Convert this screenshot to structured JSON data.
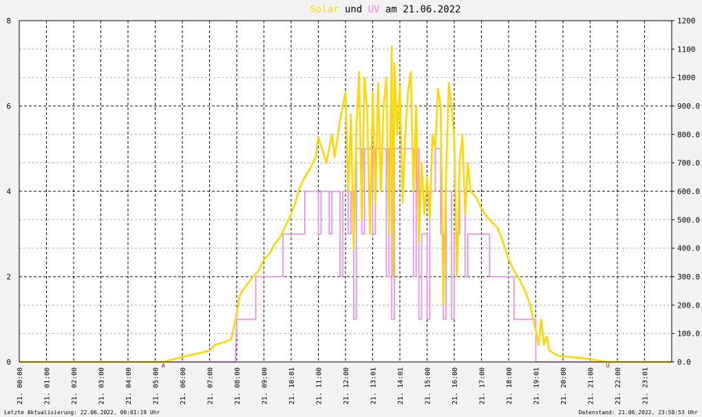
{
  "title": {
    "part1": "Solar",
    "part2": " und ",
    "part3": "UV",
    "part4": " am 21.06.2022"
  },
  "footer": {
    "left": "Letzte Aktualisierung: 22.06.2022, 00:01:19 Uhr",
    "right": "Datenstand: 21.06.2022, 23:58:53 Uhr"
  },
  "colors": {
    "solar": "#ffd700",
    "uv": "#ee82ee",
    "grid": "#000000",
    "background": "#ffffff"
  },
  "chart_data": {
    "type": "line",
    "title": "Solar und UV am 21.06.2022",
    "x_range_hours": [
      0,
      24
    ],
    "y_left": {
      "range": [
        0,
        8
      ],
      "ticks": [
        "0",
        "2",
        "4",
        "6",
        "8"
      ],
      "series": "UV"
    },
    "y_right": {
      "range": [
        0,
        1200
      ],
      "ticks": [
        "0.0",
        "100.0",
        "200.0",
        "300.0",
        "400.0",
        "500.0",
        "600.0",
        "700.0",
        "800.0",
        "900.0",
        "1000",
        "1100",
        "1200"
      ],
      "series": "Solar"
    },
    "x_tick_labels": [
      "21. 00:00",
      "21. 01:00",
      "21. 02:00",
      "21. 03:00",
      "21. 04:00",
      "21. 05:00",
      "21. 06:00",
      "21. 07:00",
      "21. 08:00",
      "21. 09:00",
      "21. 10:01",
      "21. 11:00",
      "21. 12:00",
      "21. 13:01",
      "21. 14:01",
      "21. 15:00",
      "21. 16:00",
      "21. 17:00",
      "21. 18:00",
      "21. 19:01",
      "21. 20:00",
      "21. 21:00",
      "21. 22:00",
      "21. 23:01"
    ],
    "markers": [
      {
        "label": "A",
        "hour": 5.3
      },
      {
        "label": "U",
        "hour": 21.65
      }
    ],
    "series": [
      {
        "name": "Solar",
        "axis": "right",
        "points": [
          [
            0,
            0
          ],
          [
            5.3,
            0
          ],
          [
            5.5,
            5
          ],
          [
            6.0,
            18
          ],
          [
            6.5,
            28
          ],
          [
            7.0,
            40
          ],
          [
            7.2,
            60
          ],
          [
            7.5,
            68
          ],
          [
            7.8,
            80
          ],
          [
            8.0,
            170
          ],
          [
            8.1,
            230
          ],
          [
            8.2,
            250
          ],
          [
            8.4,
            275
          ],
          [
            8.6,
            300
          ],
          [
            8.8,
            320
          ],
          [
            9.0,
            360
          ],
          [
            9.2,
            380
          ],
          [
            9.4,
            415
          ],
          [
            9.6,
            440
          ],
          [
            9.8,
            480
          ],
          [
            10.0,
            520
          ],
          [
            10.15,
            560
          ],
          [
            10.3,
            610
          ],
          [
            10.5,
            650
          ],
          [
            10.7,
            680
          ],
          [
            10.9,
            720
          ],
          [
            11.0,
            790
          ],
          [
            11.1,
            760
          ],
          [
            11.3,
            700
          ],
          [
            11.5,
            800
          ],
          [
            11.6,
            720
          ],
          [
            11.8,
            850
          ],
          [
            12.0,
            950
          ],
          [
            12.1,
            600
          ],
          [
            12.2,
            870
          ],
          [
            12.3,
            400
          ],
          [
            12.4,
            820
          ],
          [
            12.5,
            1020
          ],
          [
            12.6,
            500
          ],
          [
            12.7,
            1000
          ],
          [
            12.8,
            880
          ],
          [
            12.9,
            450
          ],
          [
            13.0,
            950
          ],
          [
            13.1,
            560
          ],
          [
            13.2,
            980
          ],
          [
            13.3,
            600
          ],
          [
            13.4,
            900
          ],
          [
            13.5,
            1000
          ],
          [
            13.6,
            450
          ],
          [
            13.7,
            1110
          ],
          [
            13.75,
            300
          ],
          [
            13.8,
            1050
          ],
          [
            13.9,
            800
          ],
          [
            14.0,
            970
          ],
          [
            14.1,
            560
          ],
          [
            14.2,
            800
          ],
          [
            14.3,
            950
          ],
          [
            14.4,
            1020
          ],
          [
            14.5,
            600
          ],
          [
            14.6,
            900
          ],
          [
            14.7,
            420
          ],
          [
            14.8,
            700
          ],
          [
            14.9,
            520
          ],
          [
            15.0,
            650
          ],
          [
            15.1,
            500
          ],
          [
            15.2,
            800
          ],
          [
            15.3,
            750
          ],
          [
            15.4,
            960
          ],
          [
            15.5,
            900
          ],
          [
            15.6,
            200
          ],
          [
            15.7,
            650
          ],
          [
            15.8,
            980
          ],
          [
            15.9,
            900
          ],
          [
            16.0,
            780
          ],
          [
            16.1,
            300
          ],
          [
            16.2,
            700
          ],
          [
            16.3,
            800
          ],
          [
            16.4,
            520
          ],
          [
            16.5,
            700
          ],
          [
            16.6,
            600
          ],
          [
            16.8,
            580
          ],
          [
            17.0,
            540
          ],
          [
            17.2,
            510
          ],
          [
            17.4,
            490
          ],
          [
            17.6,
            470
          ],
          [
            17.8,
            420
          ],
          [
            18.0,
            360
          ],
          [
            18.2,
            320
          ],
          [
            18.4,
            290
          ],
          [
            18.6,
            250
          ],
          [
            18.8,
            200
          ],
          [
            19.0,
            110
          ],
          [
            19.1,
            60
          ],
          [
            19.2,
            150
          ],
          [
            19.3,
            60
          ],
          [
            19.4,
            90
          ],
          [
            19.5,
            40
          ],
          [
            19.8,
            22
          ],
          [
            20.2,
            18
          ],
          [
            20.6,
            15
          ],
          [
            21.0,
            10
          ],
          [
            21.3,
            5
          ],
          [
            21.65,
            0
          ],
          [
            24,
            0
          ]
        ]
      },
      {
        "name": "UV",
        "axis": "left",
        "points": [
          [
            0,
            0
          ],
          [
            7.95,
            0
          ],
          [
            8.0,
            1
          ],
          [
            8.7,
            1
          ],
          [
            8.7,
            2
          ],
          [
            9.7,
            2
          ],
          [
            9.7,
            3
          ],
          [
            10.0,
            3
          ],
          [
            10.0,
            3
          ],
          [
            10.5,
            3
          ],
          [
            10.5,
            4
          ],
          [
            11.0,
            4
          ],
          [
            11.0,
            3
          ],
          [
            11.1,
            3
          ],
          [
            11.1,
            4
          ],
          [
            11.4,
            4
          ],
          [
            11.4,
            3
          ],
          [
            11.5,
            3
          ],
          [
            11.5,
            4
          ],
          [
            11.8,
            4
          ],
          [
            11.8,
            2
          ],
          [
            11.9,
            2
          ],
          [
            11.9,
            4
          ],
          [
            12.1,
            4
          ],
          [
            12.1,
            3
          ],
          [
            12.2,
            3
          ],
          [
            12.2,
            4
          ],
          [
            12.3,
            4
          ],
          [
            12.3,
            1
          ],
          [
            12.4,
            1
          ],
          [
            12.4,
            5
          ],
          [
            12.6,
            5
          ],
          [
            12.6,
            3
          ],
          [
            12.7,
            3
          ],
          [
            12.7,
            5
          ],
          [
            13.0,
            5
          ],
          [
            13.0,
            3
          ],
          [
            13.1,
            3
          ],
          [
            13.1,
            5
          ],
          [
            13.5,
            5
          ],
          [
            13.5,
            2
          ],
          [
            13.6,
            2
          ],
          [
            13.6,
            5
          ],
          [
            13.7,
            5
          ],
          [
            13.7,
            1
          ],
          [
            13.8,
            1
          ],
          [
            13.8,
            5
          ],
          [
            14.5,
            5
          ],
          [
            14.5,
            2
          ],
          [
            14.6,
            2
          ],
          [
            14.6,
            5
          ],
          [
            14.7,
            5
          ],
          [
            14.7,
            1
          ],
          [
            14.8,
            1
          ],
          [
            14.8,
            3
          ],
          [
            15.0,
            3
          ],
          [
            15.0,
            1
          ],
          [
            15.1,
            1
          ],
          [
            15.1,
            4
          ],
          [
            15.3,
            4
          ],
          [
            15.3,
            5
          ],
          [
            15.5,
            5
          ],
          [
            15.5,
            3
          ],
          [
            15.6,
            3
          ],
          [
            15.6,
            1
          ],
          [
            15.7,
            1
          ],
          [
            15.7,
            4
          ],
          [
            15.9,
            4
          ],
          [
            15.9,
            1
          ],
          [
            16.0,
            1
          ],
          [
            16.0,
            3
          ],
          [
            16.2,
            3
          ],
          [
            16.2,
            4
          ],
          [
            16.4,
            4
          ],
          [
            16.4,
            2
          ],
          [
            16.5,
            2
          ],
          [
            16.5,
            3
          ],
          [
            17.3,
            3
          ],
          [
            17.3,
            2
          ],
          [
            18.2,
            2
          ],
          [
            18.2,
            1
          ],
          [
            19.0,
            1
          ],
          [
            19.0,
            0
          ],
          [
            24,
            0
          ]
        ]
      }
    ]
  }
}
